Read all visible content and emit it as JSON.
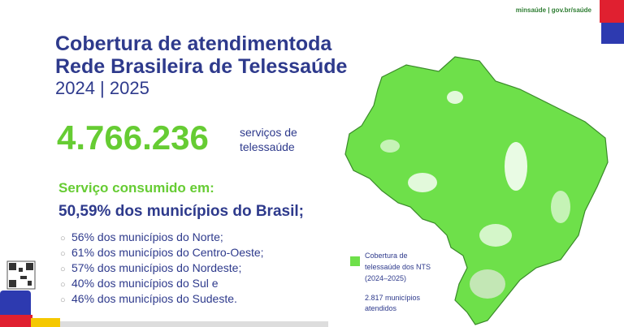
{
  "header": {
    "logo": "minsaúde | gov.br/saúde",
    "title_lines": [
      "Cobertura de atendimentoda",
      "Rede Brasileira de Telessaúde"
    ],
    "period": "2024 | 2025"
  },
  "highlight": {
    "number": "4.766.236",
    "label_lines": [
      "serviços de",
      "telessaúde"
    ]
  },
  "consumption": {
    "heading": "Serviço consumido em:",
    "summary": "50,59% dos municípios do Brasil;",
    "items": [
      "56% dos municípios do Norte;",
      "61% dos municípios do Centro-Oeste;",
      "57% dos municípios do Nordeste;",
      "40% dos municípios do Sul e",
      "46% dos municípios do Sudeste."
    ]
  },
  "legend": {
    "lines": [
      "Cobertura de",
      "telessaúde dos NTS",
      "(2024–2025)"
    ],
    "count_lines": [
      "2.817 municípios",
      "atendidos"
    ]
  }
}
